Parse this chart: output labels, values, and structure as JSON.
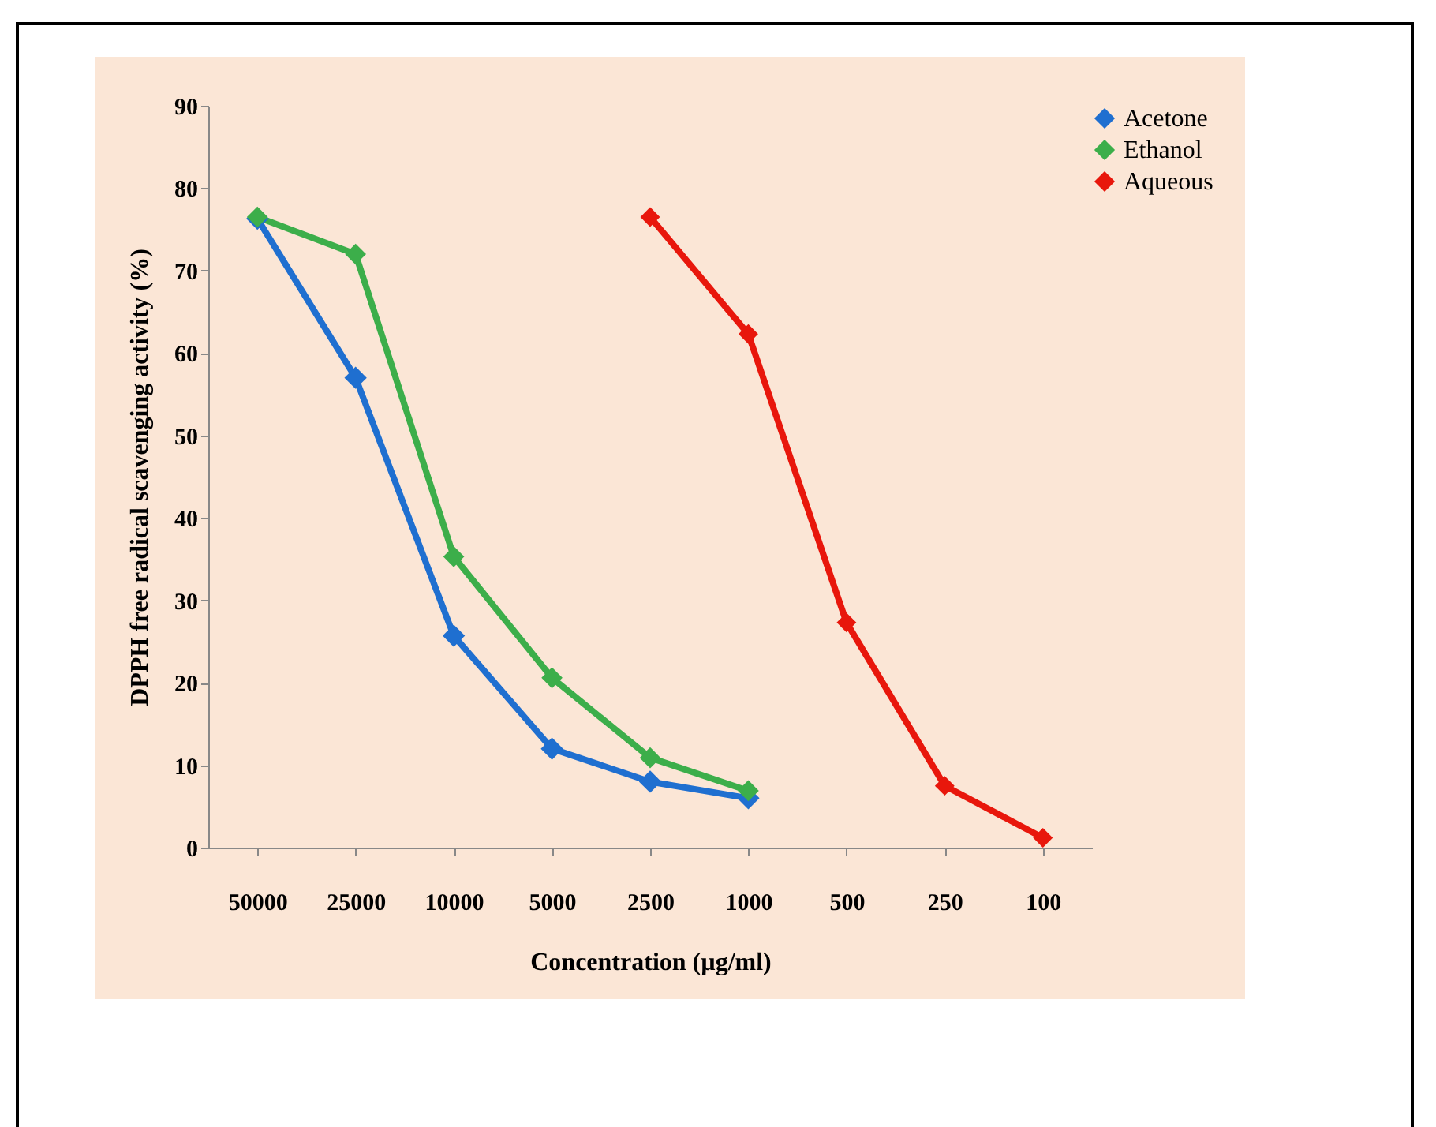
{
  "chart_data": {
    "type": "line",
    "xlabel": "Concentration (µg/ml)",
    "ylabel": "DPPH free radical scavenging activity (%)",
    "categories": [
      "50000",
      "25000",
      "10000",
      "5000",
      "2500",
      "1000",
      "500",
      "250",
      "100"
    ],
    "series": [
      {
        "name": "Acetone",
        "color": "#1f6fd0",
        "values": [
          76.3,
          57,
          25.7,
          12,
          8,
          6,
          null,
          null,
          null
        ]
      },
      {
        "name": "Ethanol",
        "color": "#3cae4a",
        "values": [
          76.5,
          72,
          35.3,
          20.6,
          10.9,
          6.9,
          null,
          null,
          null
        ]
      },
      {
        "name": "Aqueous",
        "color": "#e8170c",
        "values": [
          null,
          null,
          null,
          null,
          76.5,
          62.3,
          27.3,
          7.5,
          1.2
        ]
      }
    ],
    "ylim": [
      0,
      90
    ],
    "yticks": [
      0,
      10,
      20,
      30,
      40,
      50,
      60,
      70,
      80,
      90
    ],
    "grid": false,
    "legend": "right",
    "marker": "diamond"
  }
}
